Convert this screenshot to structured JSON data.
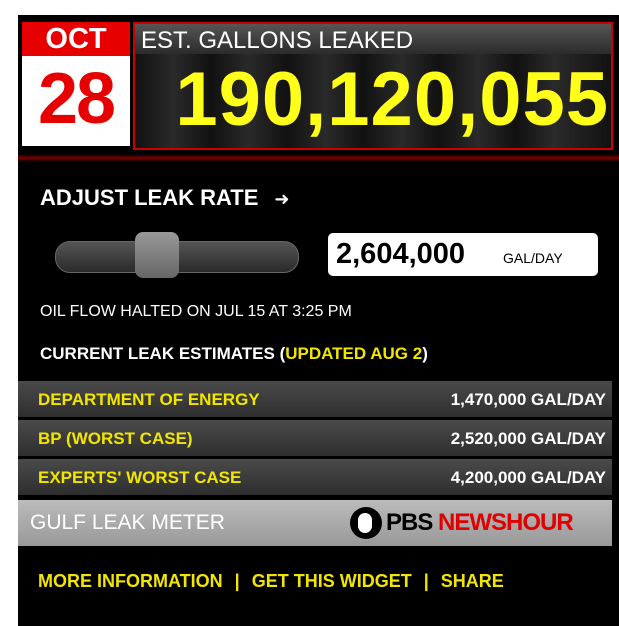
{
  "date": {
    "month": "OCT",
    "day": "28"
  },
  "counter": {
    "label": "EST. GALLONS LEAKED",
    "value": "190,120,055"
  },
  "adjust": {
    "label": "ADJUST LEAK RATE",
    "rate": "2,604,000",
    "unit": "GAL/DAY"
  },
  "note": "OIL FLOW HALTED ON JUL 15 AT 3:25 PM",
  "estimates": {
    "heading": "CURRENT LEAK ESTIMATES (",
    "updated": "UPDATED AUG 2",
    "heading_end": ")",
    "rows": [
      [
        "DEPARTMENT OF ENERGY",
        "1,470,000 GAL/DAY"
      ],
      [
        "BP (WORST CASE)",
        "2,520,000 GAL/DAY"
      ],
      [
        "EXPERTS' WORST CASE",
        "4,200,000 GAL/DAY"
      ]
    ]
  },
  "brand": {
    "name": "GULF LEAK METER",
    "pbs": "PBS",
    "newshour": "NEWSHOUR"
  },
  "links": {
    "items": [
      "MORE INFORMATION",
      "GET THIS WIDGET",
      "SHARE"
    ],
    "separator": "|"
  }
}
